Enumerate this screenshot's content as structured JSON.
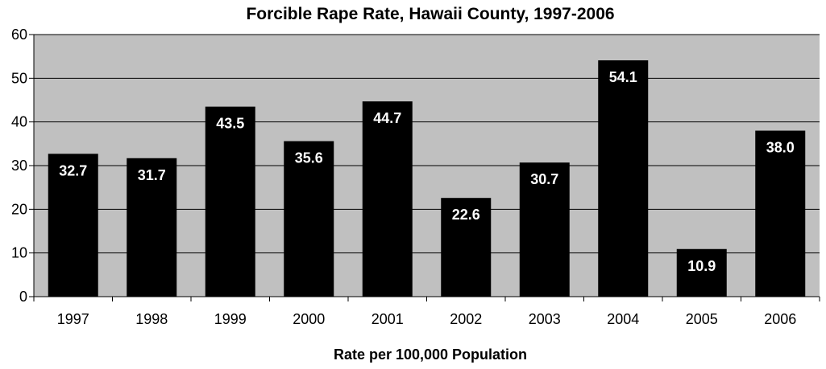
{
  "chart_data": {
    "type": "bar",
    "title": "Forcible Rape Rate, Hawaii County, 1997-2006",
    "xlabel": "Rate per 100,000 Population",
    "ylabel": "",
    "categories": [
      "1997",
      "1998",
      "1999",
      "2000",
      "2001",
      "2002",
      "2003",
      "2004",
      "2005",
      "2006"
    ],
    "values": [
      32.7,
      31.7,
      43.5,
      35.6,
      44.7,
      22.6,
      30.7,
      54.1,
      10.9,
      38.0
    ],
    "data_labels": [
      "32.7",
      "31.7",
      "43.5",
      "35.6",
      "44.7",
      "22.6",
      "30.7",
      "54.1",
      "10.9",
      "38.0"
    ],
    "yticks": [
      "0",
      "10",
      "20",
      "30",
      "40",
      "50",
      "60"
    ],
    "ylim": [
      0,
      60
    ],
    "grid": true,
    "legend": "none",
    "colors": {
      "bar": "#000000",
      "plot_background": "#c0c0c0",
      "gridline": "#000000",
      "data_label": "#ffffff"
    }
  }
}
